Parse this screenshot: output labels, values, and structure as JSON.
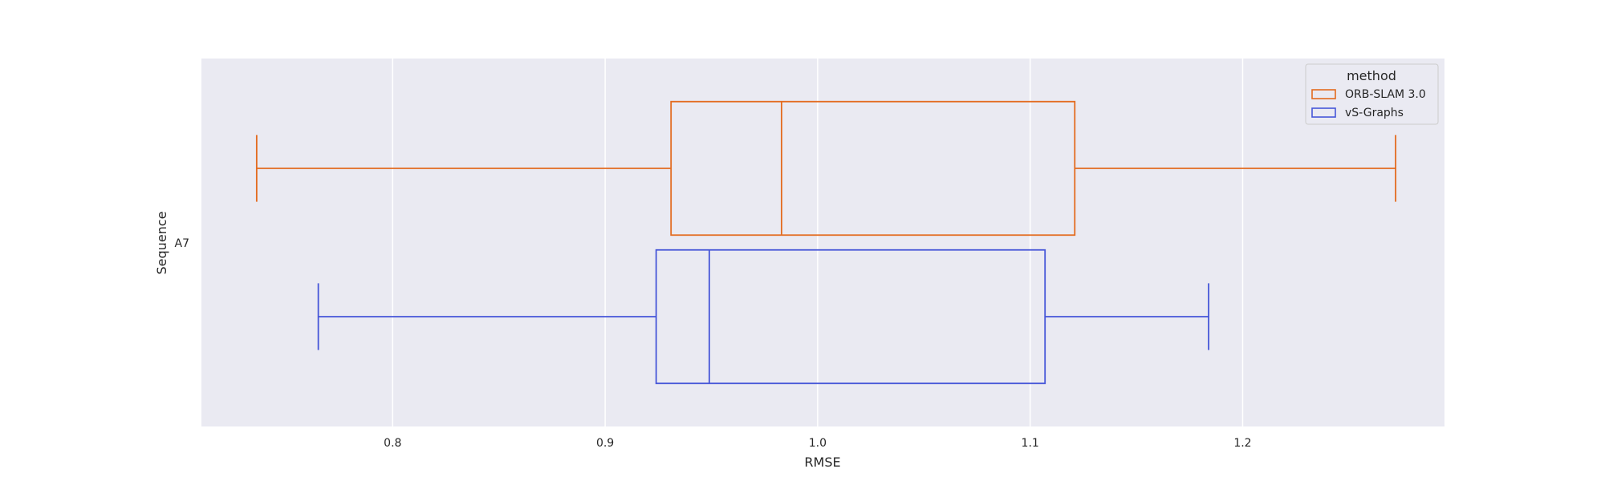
{
  "chart_data": {
    "type": "boxplot",
    "orientation": "horizontal",
    "xlabel": "RMSE",
    "ylabel": "Sequence",
    "categories": [
      "A7"
    ],
    "xlim": [
      0.71,
      1.295
    ],
    "xticks": [
      0.8,
      0.9,
      1.0,
      1.1,
      1.2
    ],
    "xtick_labels": [
      "0.8",
      "0.9",
      "1.0",
      "1.1",
      "1.2"
    ],
    "grid": true,
    "legend": {
      "title": "method",
      "placement": "top-right"
    },
    "series": [
      {
        "name": "ORB-SLAM 3.0",
        "color": "#E36B1F",
        "boxes": [
          {
            "category": "A7",
            "whisker_low": 0.736,
            "q1": 0.931,
            "median": 0.983,
            "q3": 1.121,
            "whisker_high": 1.272
          }
        ]
      },
      {
        "name": "vS-Graphs",
        "color": "#4656D8",
        "boxes": [
          {
            "category": "A7",
            "whisker_low": 0.765,
            "q1": 0.924,
            "median": 0.949,
            "q3": 1.107,
            "whisker_high": 1.184
          }
        ]
      }
    ]
  }
}
